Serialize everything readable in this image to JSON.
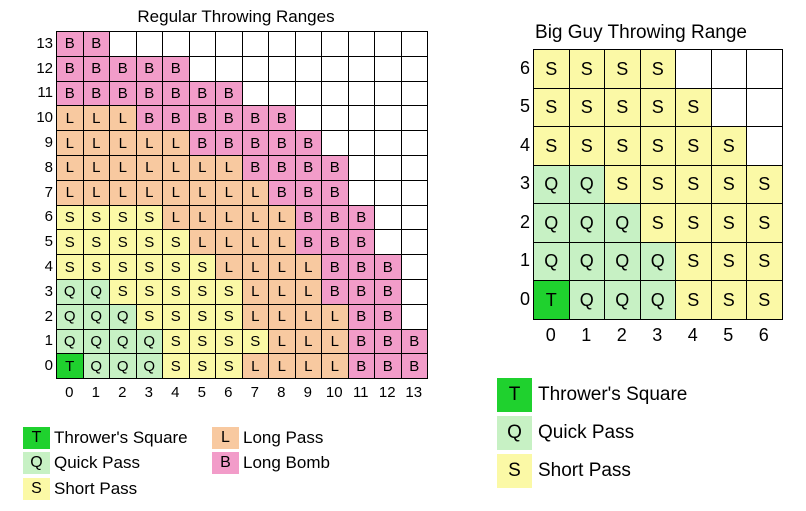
{
  "colors": {
    "T": "#1fd12e",
    "Q": "#c7f1c4",
    "S": "#fbf9a6",
    "L": "#f8c9a0",
    "B": "#f29cc9",
    "empty": "#ffffff"
  },
  "regular": {
    "title": "Regular Throwing Ranges",
    "rows": [
      "BB",
      "BBBBB",
      "BBBBBBB",
      "LLLBBBBBB",
      "LLLLLBBBBB",
      "LLLLLLLBBBB",
      "LLLLLLLLBBB",
      "SSSSLLLLLBBB",
      "SSSSSLLLLBBB",
      "SSSSSSLLLLBBB",
      "QQSSSSSLLLBBB",
      "QQQSSSSLLLLBB",
      "QQQQSSSSLLLBBB",
      "TQQQSSSLLLLBBB"
    ],
    "y_labels": [
      "13",
      "12",
      "11",
      "10",
      "9",
      "8",
      "7",
      "6",
      "5",
      "4",
      "3",
      "2",
      "1",
      "0"
    ],
    "x_labels": [
      "0",
      "1",
      "2",
      "3",
      "4",
      "5",
      "6",
      "7",
      "8",
      "9",
      "10",
      "11",
      "12",
      "13"
    ]
  },
  "big_guy": {
    "title": "Big Guy Throwing Range",
    "rows": [
      "SSSS",
      "SSSSS",
      "SSSSSS",
      "QQSSSSS",
      "QQQSSSS",
      "QQQQSSS",
      "TQQQSSS"
    ],
    "y_labels": [
      "6",
      "5",
      "4",
      "3",
      "2",
      "1",
      "0"
    ],
    "x_labels": [
      "0",
      "1",
      "2",
      "3",
      "4",
      "5",
      "6"
    ]
  },
  "legend_regular": [
    {
      "code": "T",
      "label": "Thrower's Square"
    },
    {
      "code": "Q",
      "label": "Quick Pass"
    },
    {
      "code": "S",
      "label": "Short Pass"
    },
    {
      "code": "L",
      "label": "Long Pass"
    },
    {
      "code": "B",
      "label": "Long Bomb"
    }
  ],
  "legend_big_guy": [
    {
      "code": "T",
      "label": "Thrower's Square"
    },
    {
      "code": "Q",
      "label": "Quick Pass"
    },
    {
      "code": "S",
      "label": "Short Pass"
    }
  ]
}
